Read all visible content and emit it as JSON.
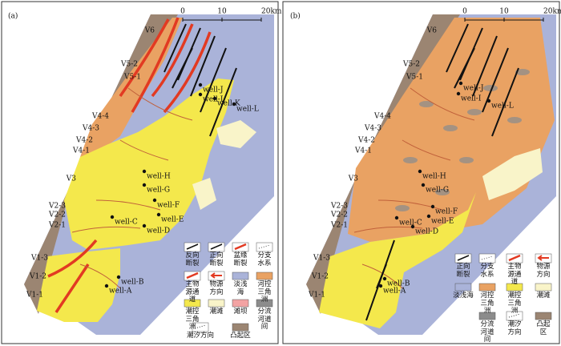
{
  "panels": [
    {
      "label": "(a)",
      "scale": [
        "0",
        "10",
        "20km"
      ],
      "zones": [
        "V6",
        "V5-2",
        "V5-1",
        "V4-4",
        "V4-3",
        "V4-2",
        "V4-1",
        "V3",
        "V2-3",
        "V2-2",
        "V2-1",
        "V1-3",
        "V1-2",
        "V1-1"
      ],
      "wells": [
        "well-J",
        "well-I",
        "well-K",
        "well-L",
        "well-H",
        "well-G",
        "well-F",
        "well-E",
        "well-C",
        "well-D",
        "well-B",
        "well-A"
      ],
      "legend": [
        "反向断裂",
        "正向断裂",
        "盆缘断裂",
        "分支水系",
        "主物源通道",
        "物源方向",
        "淡浅海",
        "河控三角洲",
        "潮控三角洲",
        "潮滩",
        "滩坝",
        "分流河道间",
        "潮汐方向",
        "凸起区"
      ]
    },
    {
      "label": "(b)",
      "scale": [
        "0",
        "10",
        "20km"
      ],
      "zones": [
        "V6",
        "V5-2",
        "V5-1",
        "V4-4",
        "V4-3",
        "V4-2",
        "V4-1",
        "V3",
        "V2-3",
        "V2-2",
        "V2-1",
        "V1-3",
        "V1-2",
        "V1-1"
      ],
      "wells": [
        "well-J",
        "well-I",
        "well-L",
        "well-H",
        "well-G",
        "well-F",
        "well-E",
        "well-C",
        "well-D",
        "well-B",
        "well-A"
      ],
      "legend": [
        "正向断裂",
        "分支水系",
        "主物源通道",
        "物源方向",
        "淡浅海",
        "河控三角洲",
        "潮控三角洲",
        "潮滩",
        "分流河道间",
        "潮汐方向",
        "凸起区"
      ]
    }
  ]
}
